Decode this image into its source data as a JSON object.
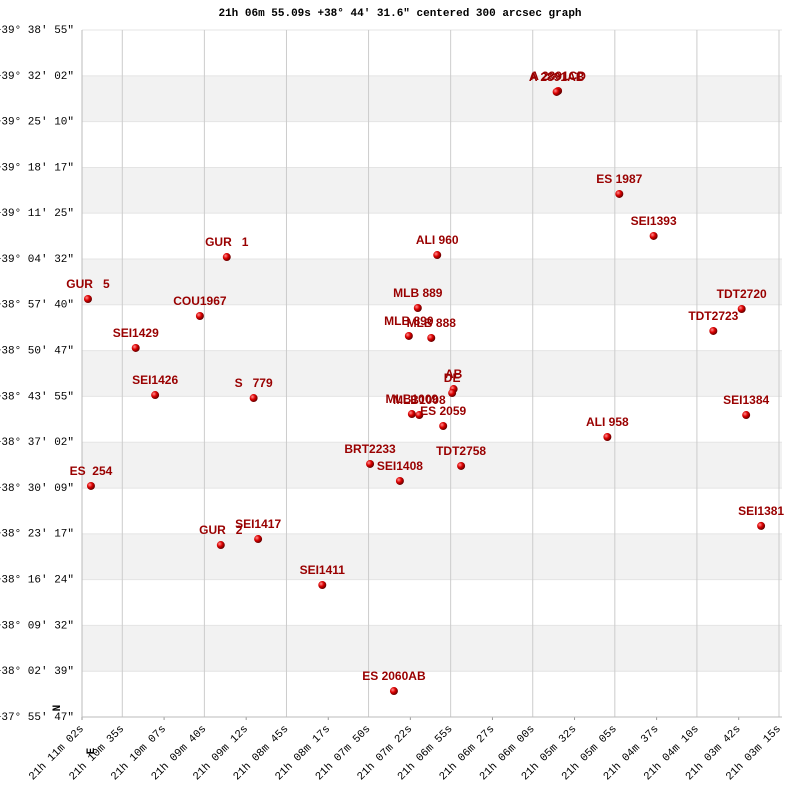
{
  "chart_data": {
    "type": "scatter",
    "title": "21h 06m 55.09s +38° 44′ 31.6\" centered 300 arcsec graph",
    "north_label": "N",
    "east_label": "E",
    "color": "#cc0000",
    "label_color": "#990000",
    "grid": true,
    "xlim": [
      76262,
      75795
    ],
    "xticks": [
      {
        "value": 76262,
        "label": "21h 11m 02s"
      },
      {
        "value": 76235,
        "label": "21h 10m 35s"
      },
      {
        "value": 76207,
        "label": "21h 10m 07s"
      },
      {
        "value": 76180,
        "label": "21h 09m 40s"
      },
      {
        "value": 76152,
        "label": "21h 09m 12s"
      },
      {
        "value": 76125,
        "label": "21h 08m 45s"
      },
      {
        "value": 76097,
        "label": "21h 08m 17s"
      },
      {
        "value": 76070,
        "label": "21h 07m 50s"
      },
      {
        "value": 76042,
        "label": "21h 07m 22s"
      },
      {
        "value": 76015,
        "label": "21h 06m 55s"
      },
      {
        "value": 75987,
        "label": "21h 06m 27s"
      },
      {
        "value": 75960,
        "label": "21h 06m 00s"
      },
      {
        "value": 75932,
        "label": "21h 05m 32s"
      },
      {
        "value": 75905,
        "label": "21h 05m 05s"
      },
      {
        "value": 75877,
        "label": "21h 04m 37s"
      },
      {
        "value": 75850,
        "label": "21h 04m 10s"
      },
      {
        "value": 75822,
        "label": "21h 03m 42s"
      },
      {
        "value": 75795,
        "label": "21h 03m 15s"
      }
    ],
    "ylim": [
      136547,
      142735
    ],
    "yticks": [
      {
        "value": 142735,
        "label": "+39° 38' 55\""
      },
      {
        "value": 142322,
        "label": "+39° 32' 02\""
      },
      {
        "value": 141910,
        "label": "+39° 25' 10\""
      },
      {
        "value": 141497,
        "label": "+39° 18' 17\""
      },
      {
        "value": 141085,
        "label": "+39° 11' 25\""
      },
      {
        "value": 140672,
        "label": "+39° 04' 32\""
      },
      {
        "value": 140260,
        "label": "+38° 57' 40\""
      },
      {
        "value": 139847,
        "label": "+38° 50' 47\""
      },
      {
        "value": 139435,
        "label": "+38° 43' 55\""
      },
      {
        "value": 139022,
        "label": "+38° 37' 02\""
      },
      {
        "value": 138609,
        "label": "+38° 30' 09\""
      },
      {
        "value": 138197,
        "label": "+38° 23' 17\""
      },
      {
        "value": 137784,
        "label": "+38° 16' 24\""
      },
      {
        "value": 137372,
        "label": "+38° 09' 32\""
      },
      {
        "value": 136959,
        "label": "+38° 02' 39\""
      },
      {
        "value": 136547,
        "label": "+37° 55' 47\""
      }
    ],
    "labels": [
      "A 2891CD",
      "A 2891AB",
      "ES 1987",
      "SEI1393",
      "GUR   1",
      "ALI 960",
      "GUR   5",
      "COU1967",
      "MLB 889",
      "TDT2720",
      "MLB 890",
      "MLB 888",
      "TDT2723",
      "SEI1429",
      "AB",
      "DE",
      "S   779",
      "SEI1426",
      "MLB1009",
      "MLB1008",
      "ES 2059",
      "SEI1384",
      "ALI 958",
      "BRT2233",
      "TDT2758",
      "SEI1408",
      "ES  254",
      "SEI1381",
      "SEI1417",
      "GUR   2",
      "SEI1411",
      "ES 2060AB"
    ],
    "x": [
      75943,
      75944,
      75902,
      75879,
      76165,
      76024,
      76258,
      76183,
      76037,
      75820,
      76043,
      76028,
      75839,
      76226,
      76013,
      76014,
      76147,
      76213,
      76041,
      76036,
      76020,
      75817,
      75910,
      76069,
      76008,
      76049,
      76256,
      75807,
      76144,
      76169,
      76101,
      76053
    ],
    "values": [
      142186,
      142177,
      141258,
      140880,
      140690,
      140708,
      140312,
      140159,
      140231,
      140222,
      139979,
      139961,
      140024,
      139871,
      139501,
      139465,
      139420,
      139447,
      139276,
      139267,
      139168,
      139267,
      139069,
      138826,
      138808,
      138673,
      138628,
      138268,
      138150,
      138096,
      137736,
      136781
    ]
  }
}
